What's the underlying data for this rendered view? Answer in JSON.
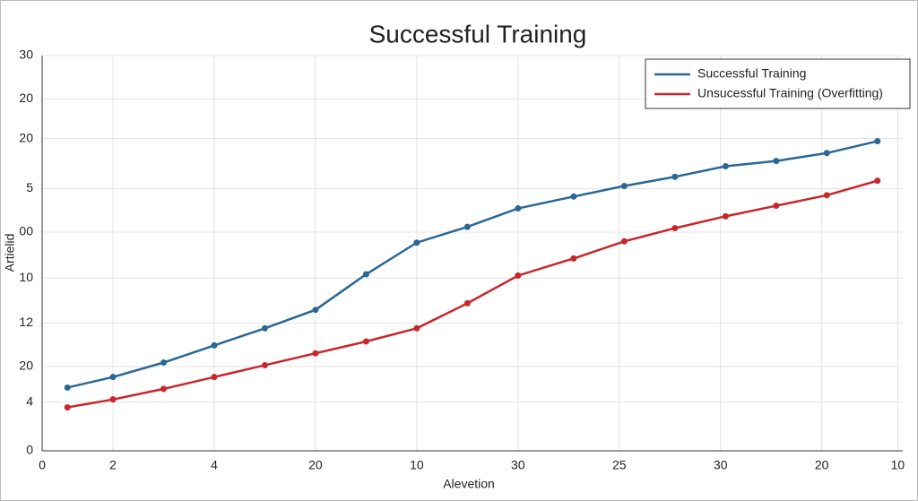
{
  "chart_data": {
    "type": "line",
    "title": "Successful Training",
    "xlabel": "Alevetion",
    "ylabel": "Artielid",
    "x": [
      0.5,
      1.4,
      2.4,
      3.4,
      4.4,
      5.4,
      6.4,
      7.4,
      8.4,
      9.4,
      10.5,
      11.5,
      12.5,
      13.5,
      14.5,
      15.5,
      16.5
    ],
    "series": [
      {
        "name": "Successful Training",
        "color": "#2a6795",
        "values": [
          4.8,
          5.6,
          6.7,
          8.0,
          9.3,
          10.7,
          13.4,
          15.8,
          17.0,
          18.4,
          19.3,
          20.1,
          20.8,
          21.6,
          22.0,
          22.6,
          23.5
        ]
      },
      {
        "name": "Unsucessful Training (Overfitting)",
        "color": "#c8262b",
        "values": [
          3.3,
          3.9,
          4.7,
          5.6,
          6.5,
          7.4,
          8.3,
          9.3,
          11.2,
          13.3,
          14.6,
          15.9,
          16.9,
          17.8,
          18.6,
          19.4,
          20.5
        ]
      }
    ],
    "xlim": [
      0,
      17
    ],
    "xticks": [
      0,
      {
        "value": 1.4,
        "label": "2"
      },
      {
        "value": 3.4,
        "label": "4"
      },
      {
        "value": 5.4,
        "label": "20"
      },
      {
        "value": 7.4,
        "label": "10"
      },
      {
        "value": 9.4,
        "label": "30"
      },
      {
        "value": 11.4,
        "label": "25"
      },
      {
        "value": 13.4,
        "label": "30"
      },
      {
        "value": 15.4,
        "label": "20"
      },
      {
        "value": 16.9,
        "label": "10"
      }
    ],
    "ylim": [
      0,
      30
    ],
    "yticks": [
      0,
      {
        "value": 3.7,
        "label": "4"
      },
      {
        "value": 6.4,
        "label": "20"
      },
      {
        "value": 9.7,
        "label": "12"
      },
      {
        "value": 13.1,
        "label": "10"
      },
      {
        "value": 16.6,
        "label": "00"
      },
      {
        "value": 19.9,
        "label": "5"
      },
      {
        "value": 23.7,
        "label": "20"
      },
      {
        "value": 26.7,
        "label": "20"
      },
      30
    ],
    "grid": true,
    "legend": "upper right"
  }
}
